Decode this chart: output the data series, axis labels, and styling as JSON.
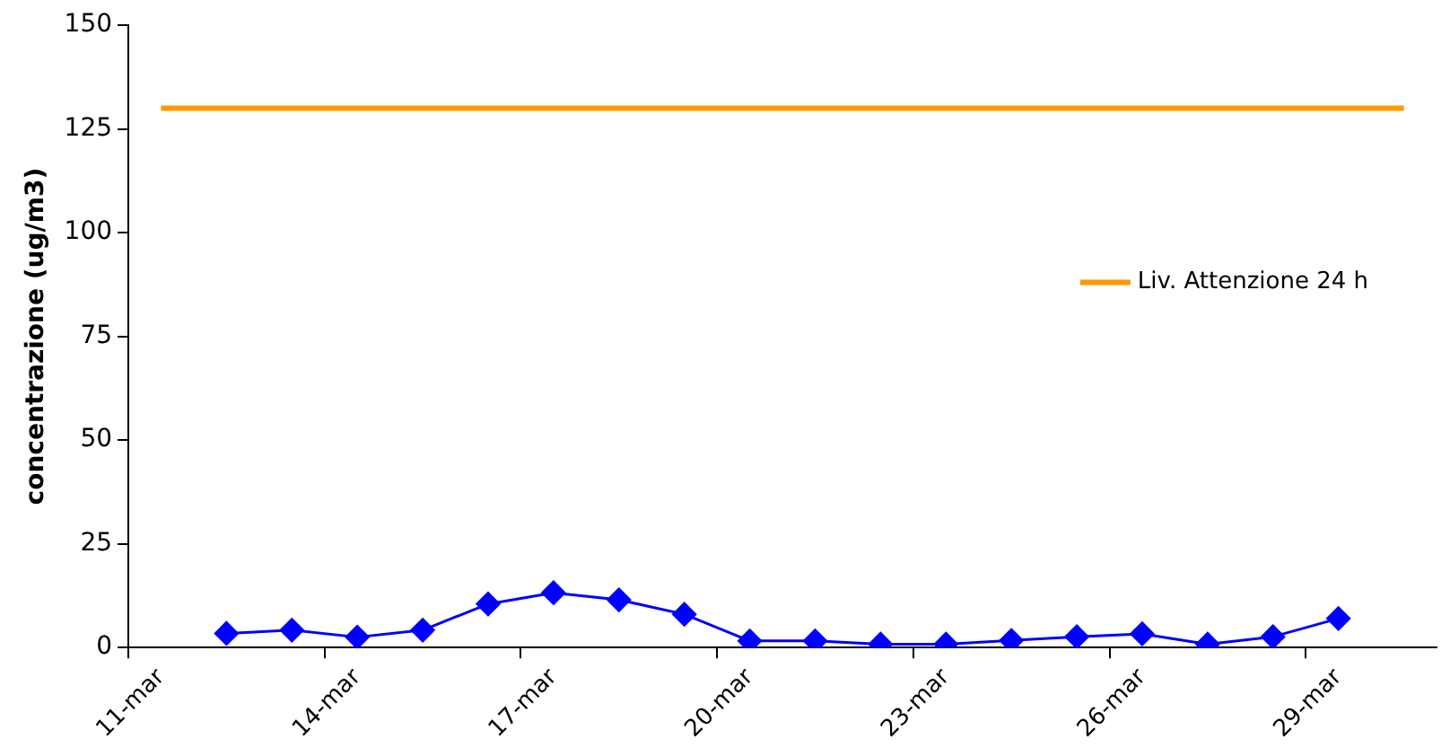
{
  "chart_data": {
    "type": "line",
    "ylabel": "concentrazione (ug/m3)",
    "categories": [
      "11-mar",
      null,
      null,
      "14-mar",
      null,
      null,
      "17-mar",
      null,
      null,
      "20-mar",
      null,
      null,
      "23-mar",
      null,
      null,
      "26-mar",
      null,
      null,
      "29-mar",
      null
    ],
    "series": [
      {
        "color": "#0000ff",
        "marker": "diamond",
        "values": [
          null,
          3.4,
          4.2,
          2.5,
          4.2,
          10.5,
          13.2,
          11.5,
          8.0,
          1.6,
          1.6,
          0.8,
          0.8,
          1.7,
          2.6,
          3.3,
          0.8,
          2.6,
          7.0,
          null
        ]
      },
      {
        "name": "Liv. Attenzione 24 h",
        "color": "#ff9900",
        "marker": "none",
        "values": [
          130,
          130,
          130,
          130,
          130,
          130,
          130,
          130,
          130,
          130,
          130,
          130,
          130,
          130,
          130,
          130,
          130,
          130,
          130,
          130
        ]
      }
    ],
    "ylim": [
      0,
      150
    ],
    "yticks": [
      0,
      25,
      50,
      75,
      100,
      125,
      150
    ],
    "grid": false,
    "legend": "right"
  }
}
